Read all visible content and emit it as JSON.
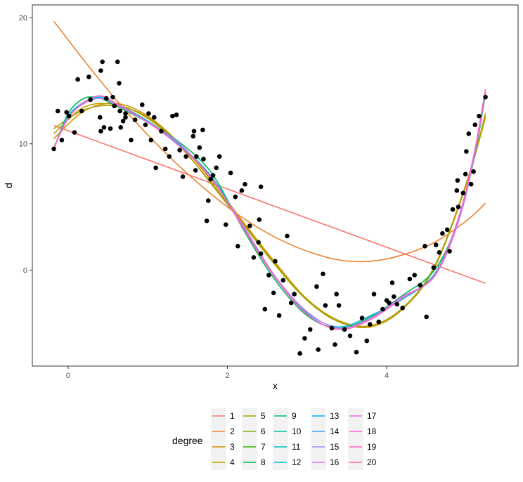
{
  "chart_data": {
    "type": "scatter",
    "xlabel": "x",
    "ylabel": "d",
    "xlim": [
      -0.45,
      5.65
    ],
    "ylim": [
      -7.6,
      21.0
    ],
    "x_ticks": [
      0,
      2,
      4
    ],
    "y_ticks": [
      0,
      10,
      20
    ],
    "x_tick_labels": [
      "0",
      "2",
      "4"
    ],
    "y_tick_labels": [
      "0",
      "10",
      "20"
    ],
    "grid": false,
    "legend": {
      "title": "degree",
      "position": "bottom",
      "labels": [
        "1",
        "2",
        "3",
        "4",
        "5",
        "6",
        "7",
        "8",
        "9",
        "10",
        "11",
        "12",
        "13",
        "14",
        "15",
        "16",
        "17",
        "18",
        "19",
        "20"
      ],
      "colors": [
        "#F8766D",
        "#EA8331",
        "#D89000",
        "#C09B00",
        "#A3A500",
        "#7CAE00",
        "#39B600",
        "#00BB4E",
        "#00BF7D",
        "#00C1A3",
        "#00BFC4",
        "#00BAE0",
        "#00B0F6",
        "#35A2FF",
        "#9590FF",
        "#C77CFF",
        "#E76BF3",
        "#FA62DB",
        "#FF62BC",
        "#FF6A98"
      ]
    },
    "points": [
      [
        -0.18,
        9.6
      ],
      [
        -0.13,
        12.6
      ],
      [
        -0.08,
        10.3
      ],
      [
        -0.02,
        12.5
      ],
      [
        0.01,
        12.2
      ],
      [
        0.08,
        10.9
      ],
      [
        0.12,
        15.1
      ],
      [
        0.17,
        12.6
      ],
      [
        0.26,
        15.3
      ],
      [
        0.28,
        13.5
      ],
      [
        0.4,
        12.1
      ],
      [
        0.41,
        11.0
      ],
      [
        0.41,
        15.8
      ],
      [
        0.43,
        16.5
      ],
      [
        0.45,
        11.3
      ],
      [
        0.48,
        13.6
      ],
      [
        0.53,
        11.2
      ],
      [
        0.56,
        13.7
      ],
      [
        0.58,
        13.0
      ],
      [
        0.62,
        16.5
      ],
      [
        0.64,
        14.8
      ],
      [
        0.65,
        12.6
      ],
      [
        0.66,
        11.3
      ],
      [
        0.69,
        11.8
      ],
      [
        0.72,
        12.1
      ],
      [
        0.72,
        12.4
      ],
      [
        0.79,
        10.3
      ],
      [
        0.84,
        11.9
      ],
      [
        0.93,
        13.1
      ],
      [
        0.97,
        11.5
      ],
      [
        1.01,
        12.4
      ],
      [
        1.04,
        10.3
      ],
      [
        1.08,
        12.1
      ],
      [
        1.1,
        8.1
      ],
      [
        1.17,
        11.0
      ],
      [
        1.22,
        9.6
      ],
      [
        1.27,
        9.0
      ],
      [
        1.31,
        12.2
      ],
      [
        1.36,
        12.3
      ],
      [
        1.4,
        9.5
      ],
      [
        1.44,
        7.4
      ],
      [
        1.48,
        9.0
      ],
      [
        1.57,
        10.6
      ],
      [
        1.58,
        11.0
      ],
      [
        1.6,
        7.9
      ],
      [
        1.61,
        9.0
      ],
      [
        1.65,
        9.7
      ],
      [
        1.69,
        11.1
      ],
      [
        1.7,
        8.8
      ],
      [
        1.74,
        3.9
      ],
      [
        1.76,
        5.5
      ],
      [
        1.79,
        7.2
      ],
      [
        1.82,
        7.5
      ],
      [
        1.86,
        8.1
      ],
      [
        1.9,
        9.0
      ],
      [
        1.98,
        3.6
      ],
      [
        2.04,
        7.7
      ],
      [
        2.1,
        5.8
      ],
      [
        2.13,
        1.9
      ],
      [
        2.18,
        6.3
      ],
      [
        2.22,
        6.8
      ],
      [
        2.28,
        3.5
      ],
      [
        2.33,
        1.0
      ],
      [
        2.39,
        2.2
      ],
      [
        2.4,
        4.0
      ],
      [
        2.42,
        1.3
      ],
      [
        2.42,
        6.6
      ],
      [
        2.47,
        -3.1
      ],
      [
        2.52,
        -0.4
      ],
      [
        2.58,
        -1.8
      ],
      [
        2.6,
        0.7
      ],
      [
        2.65,
        -3.6
      ],
      [
        2.7,
        -0.8
      ],
      [
        2.75,
        2.7
      ],
      [
        2.8,
        -2.6
      ],
      [
        2.84,
        -1.9
      ],
      [
        2.91,
        -6.6
      ],
      [
        2.97,
        -5.4
      ],
      [
        3.04,
        -4.7
      ],
      [
        3.12,
        -1.3
      ],
      [
        3.14,
        -6.3
      ],
      [
        3.2,
        -0.3
      ],
      [
        3.23,
        -2.8
      ],
      [
        3.31,
        -4.6
      ],
      [
        3.35,
        -5.9
      ],
      [
        3.37,
        -1.9
      ],
      [
        3.4,
        -2.8
      ],
      [
        3.47,
        -4.7
      ],
      [
        3.54,
        -5.2
      ],
      [
        3.62,
        -6.5
      ],
      [
        3.69,
        -3.8
      ],
      [
        3.75,
        -5.6
      ],
      [
        3.79,
        -4.3
      ],
      [
        3.84,
        -1.9
      ],
      [
        3.9,
        -4.1
      ],
      [
        3.95,
        -3.1
      ],
      [
        4.0,
        -2.4
      ],
      [
        4.03,
        -2.6
      ],
      [
        4.07,
        -1.0
      ],
      [
        4.09,
        -2.1
      ],
      [
        4.13,
        -2.7
      ],
      [
        4.2,
        -3.0
      ],
      [
        4.29,
        -0.7
      ],
      [
        4.35,
        -0.4
      ],
      [
        4.42,
        -1.2
      ],
      [
        4.48,
        1.9
      ],
      [
        4.5,
        -3.7
      ],
      [
        4.59,
        0.2
      ],
      [
        4.62,
        2.0
      ],
      [
        4.66,
        1.4
      ],
      [
        4.7,
        2.9
      ],
      [
        4.76,
        3.2
      ],
      [
        4.79,
        1.5
      ],
      [
        4.83,
        4.8
      ],
      [
        4.88,
        6.3
      ],
      [
        4.89,
        7.1
      ],
      [
        4.9,
        5.0
      ],
      [
        4.96,
        6.1
      ],
      [
        4.99,
        7.6
      ],
      [
        5.0,
        9.4
      ],
      [
        5.03,
        10.8
      ],
      [
        5.06,
        6.8
      ],
      [
        5.09,
        7.8
      ],
      [
        5.11,
        11.5
      ],
      [
        5.16,
        12.2
      ],
      [
        5.24,
        13.7
      ]
    ],
    "fitted_curves": [
      {
        "degree": 1,
        "x": [
          -0.18,
          5.24
        ],
        "y": [
          11.45,
          -1.05
        ]
      },
      {
        "degree": 2,
        "x": [
          -0.18,
          0.2,
          0.6,
          1.0,
          1.4,
          1.8,
          2.2,
          2.6,
          3.0,
          3.4,
          3.8,
          4.2,
          4.6,
          5.0,
          5.24
        ],
        "y": [
          19.7,
          16.6,
          13.5,
          10.7,
          8.2,
          6.0,
          4.1,
          2.6,
          1.5,
          0.8,
          0.7,
          1.2,
          2.2,
          3.9,
          5.3
        ]
      },
      {
        "degree": 3,
        "x": [
          -0.18,
          0.2,
          0.6,
          1.0,
          1.4,
          1.8,
          2.2,
          2.6,
          3.0,
          3.4,
          3.8,
          4.2,
          4.6,
          5.0,
          5.24
        ],
        "y": [
          10.4,
          12.6,
          13.2,
          12.2,
          10.0,
          7.1,
          3.8,
          0.6,
          -2.3,
          -4.1,
          -4.5,
          -3.1,
          0.2,
          6.8,
          12.4
        ]
      },
      {
        "degree": 4,
        "x": [
          -0.18,
          0.2,
          0.6,
          1.0,
          1.4,
          1.8,
          2.2,
          2.6,
          3.0,
          3.4,
          3.8,
          4.2,
          4.6,
          5.0,
          5.24
        ],
        "y": [
          10.8,
          12.9,
          13.1,
          12.0,
          9.8,
          6.9,
          3.7,
          0.5,
          -2.3,
          -4.0,
          -4.4,
          -3.0,
          0.3,
          6.9,
          12.3
        ]
      },
      {
        "degree": 5,
        "x": [
          -0.18,
          0.2,
          0.6,
          1.0,
          1.4,
          1.8,
          2.2,
          2.6,
          3.0,
          3.4,
          3.8,
          4.2,
          4.6,
          5.0,
          5.24
        ],
        "y": [
          11.2,
          12.7,
          13.0,
          12.1,
          9.9,
          6.8,
          3.6,
          0.4,
          -2.4,
          -4.1,
          -4.4,
          -3.0,
          0.2,
          6.8,
          12.1
        ]
      },
      {
        "degree": 8,
        "x": [
          -0.18,
          0.0,
          0.2,
          0.4,
          0.6,
          1.0,
          1.4,
          1.8,
          2.2,
          2.6,
          3.0,
          3.4,
          3.8,
          4.2,
          4.6,
          4.9,
          5.1,
          5.24
        ],
        "y": [
          9.6,
          12.4,
          13.6,
          13.6,
          13.0,
          11.7,
          10.1,
          7.7,
          3.2,
          -0.8,
          -3.6,
          -4.6,
          -3.7,
          -2.0,
          0.0,
          3.9,
          8.9,
          13.9
        ]
      },
      {
        "degree": 12,
        "x": [
          -0.18,
          0.0,
          0.2,
          0.4,
          0.6,
          1.0,
          1.4,
          1.8,
          2.2,
          2.6,
          3.0,
          3.4,
          3.8,
          4.2,
          4.6,
          4.9,
          5.1,
          5.24
        ],
        "y": [
          9.7,
          12.2,
          13.3,
          13.7,
          13.2,
          11.8,
          9.9,
          7.4,
          3.4,
          -0.6,
          -3.4,
          -4.5,
          -3.6,
          -2.3,
          -0.3,
          4.0,
          9.2,
          14.0
        ]
      },
      {
        "degree": 16,
        "x": [
          -0.18,
          0.0,
          0.2,
          0.4,
          0.6,
          1.0,
          1.4,
          1.8,
          2.2,
          2.6,
          3.0,
          3.4,
          3.8,
          4.2,
          4.6,
          4.9,
          5.1,
          5.24
        ],
        "y": [
          9.7,
          12.1,
          13.2,
          13.6,
          13.1,
          11.7,
          10.0,
          7.2,
          3.5,
          -0.5,
          -3.3,
          -4.6,
          -3.8,
          -2.1,
          -0.5,
          3.8,
          9.0,
          14.1
        ]
      },
      {
        "degree": 19,
        "x": [
          -0.18,
          0.0,
          0.2,
          0.4,
          0.6,
          1.0,
          1.4,
          1.8,
          2.2,
          2.6,
          3.0,
          3.4,
          3.8,
          4.2,
          4.6,
          4.9,
          5.1,
          5.24
        ],
        "y": [
          9.7,
          12.0,
          13.3,
          13.8,
          13.2,
          11.7,
          9.8,
          7.3,
          3.3,
          -0.6,
          -3.5,
          -4.7,
          -3.9,
          -2.2,
          -0.4,
          4.1,
          9.3,
          14.3
        ]
      }
    ]
  }
}
